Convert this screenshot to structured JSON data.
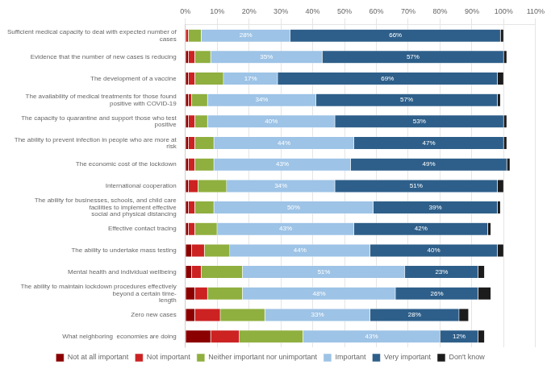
{
  "chart_data": {
    "type": "bar",
    "orientation": "horizontal",
    "stacked": true,
    "grid": "x",
    "legend": "bottom",
    "categories": [
      "Sufficient medical capacity to deal with expected number of cases",
      "Evidence that the number of new cases is reducing",
      "The development of a vaccine",
      "The availability of medical treatments for those found positive with COVID-19",
      "The capacity to quarantine and support those who test positive",
      "The ability to prevent infection in people who are more at risk",
      "The economic cost of the lockdown",
      "International cooperation",
      "The ability for businesses, schools, and child care facilities to implement effective\nsocial and physical distancing",
      "Effective contact tracing",
      "The ability to undertake mass testing",
      "Mental health and individual wellbeing",
      "The ability to maintain lockdown procedures effectively beyond a certain time-\nlength",
      "Zero new cases",
      "What neighboring  economies are doing"
    ],
    "series": [
      {
        "name": "Not at all important",
        "color": "#8B0000",
        "values": [
          0,
          1,
          1,
          1,
          1,
          1,
          1,
          1,
          1,
          1,
          2,
          2,
          3,
          3,
          8
        ]
      },
      {
        "name": "Not important",
        "color": "#CC2222",
        "values": [
          1,
          2,
          2,
          1,
          2,
          2,
          2,
          3,
          2,
          2,
          4,
          3,
          4,
          8,
          9
        ]
      },
      {
        "name": "Neither important nor unimportant",
        "color": "#8FAF3F",
        "values": [
          4,
          5,
          9,
          5,
          4,
          6,
          6,
          9,
          6,
          7,
          8,
          13,
          11,
          14,
          20
        ]
      },
      {
        "name": "Important",
        "color": "#9DC3E6",
        "values": [
          28,
          35,
          17,
          34,
          40,
          44,
          43,
          34,
          50,
          43,
          44,
          51,
          48,
          33,
          43
        ],
        "data_labels": true,
        "value_labels": [
          "28%",
          "35%",
          "17%",
          "34%",
          "40%",
          "44%",
          "43%",
          "34%",
          "50%",
          "43%",
          "44%",
          "51%",
          "48%",
          "33%",
          "43%"
        ]
      },
      {
        "name": "Very important",
        "color": "#2E5F8A",
        "values": [
          66,
          57,
          69,
          57,
          53,
          47,
          49,
          51,
          39,
          42,
          40,
          23,
          26,
          28,
          12
        ],
        "data_labels": true,
        "value_labels": [
          "66%",
          "57%",
          "69%",
          "57%",
          "53%",
          "47%",
          "49%",
          "51%",
          "39%",
          "42%",
          "40%",
          "23%",
          "26%",
          "28%",
          "12%"
        ]
      },
      {
        "name": "Don't know",
        "color": "#1C1C1C",
        "values": [
          1,
          1,
          2,
          1,
          1,
          1,
          1,
          2,
          1,
          1,
          2,
          2,
          4,
          3,
          2
        ]
      }
    ],
    "xlim": [
      0,
      110
    ],
    "xticks": [
      {
        "value": 0,
        "label": "0%"
      },
      {
        "value": 10,
        "label": "10%"
      },
      {
        "value": 20,
        "label": "20%"
      },
      {
        "value": 30,
        "label": "30%"
      },
      {
        "value": 40,
        "label": "40%"
      },
      {
        "value": 50,
        "label": "50%"
      },
      {
        "value": 60,
        "label": "60%"
      },
      {
        "value": 70,
        "label": "70%"
      },
      {
        "value": 80,
        "label": "80%"
      },
      {
        "value": 90,
        "label": "90%"
      },
      {
        "value": 100,
        "label": "100%"
      },
      {
        "value": 110,
        "label": "110%"
      }
    ]
  }
}
